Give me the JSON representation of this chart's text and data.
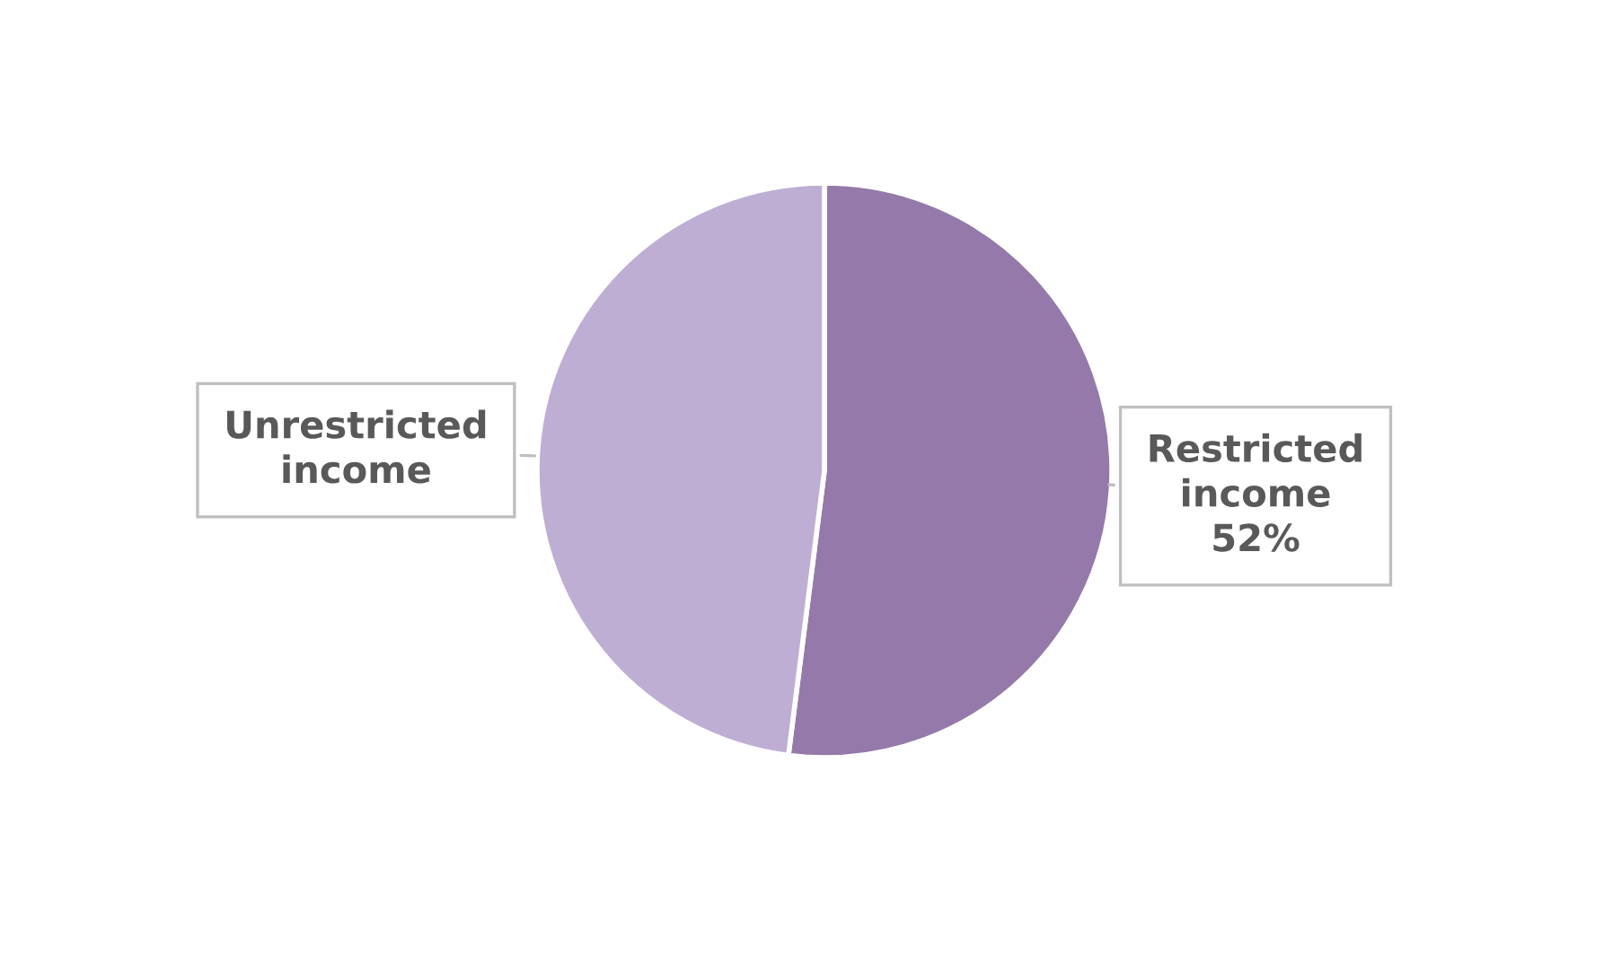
{
  "chart_data": {
    "type": "pie",
    "categories": [
      "Restricted income",
      "Unrestricted income"
    ],
    "values": [
      52,
      48
    ],
    "value_labels": [
      "52%",
      null
    ],
    "colors": [
      "#9479aa",
      "#bfaed3"
    ]
  }
}
